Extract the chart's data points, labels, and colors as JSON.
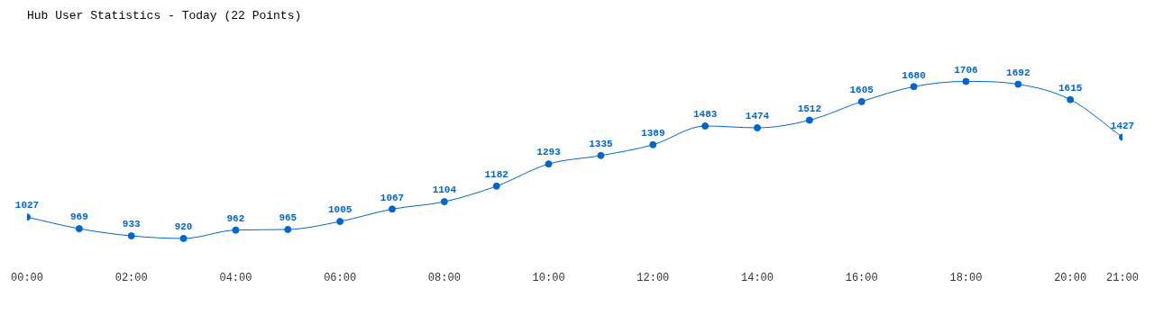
{
  "chart_data": {
    "type": "line",
    "title": "Hub User Statistics - Today (22 Points)",
    "x": [
      0,
      1,
      2,
      3,
      4,
      5,
      6,
      7,
      8,
      9,
      10,
      11,
      12,
      13,
      14,
      15,
      16,
      17,
      18,
      19,
      20,
      21
    ],
    "series": [
      {
        "color": "#0066cc",
        "values": [
          1027,
          969,
          933,
          920,
          962,
          965,
          1005,
          1067,
          1104,
          1182,
          1293,
          1335,
          1389,
          1483,
          1474,
          1512,
          1605,
          1680,
          1706,
          1692,
          1615,
          1427
        ]
      }
    ],
    "xlim": [
      0,
      21
    ],
    "xticks": [
      {
        "value": 0,
        "label": "00:00"
      },
      {
        "value": 2,
        "label": "02:00"
      },
      {
        "value": 4,
        "label": "04:00"
      },
      {
        "value": 6,
        "label": "06:00"
      },
      {
        "value": 8,
        "label": "08:00"
      },
      {
        "value": 10,
        "label": "10:00"
      },
      {
        "value": 12,
        "label": "12:00"
      },
      {
        "value": 14,
        "label": "14:00"
      },
      {
        "value": 16,
        "label": "16:00"
      },
      {
        "value": 18,
        "label": "18:00"
      },
      {
        "value": 20,
        "label": "20:00"
      },
      {
        "value": 21,
        "label": "21:00"
      }
    ],
    "tick_labels": "x",
    "data_labels": true,
    "grid": false,
    "legend": false,
    "marker": "circle",
    "line_style": "solid"
  }
}
